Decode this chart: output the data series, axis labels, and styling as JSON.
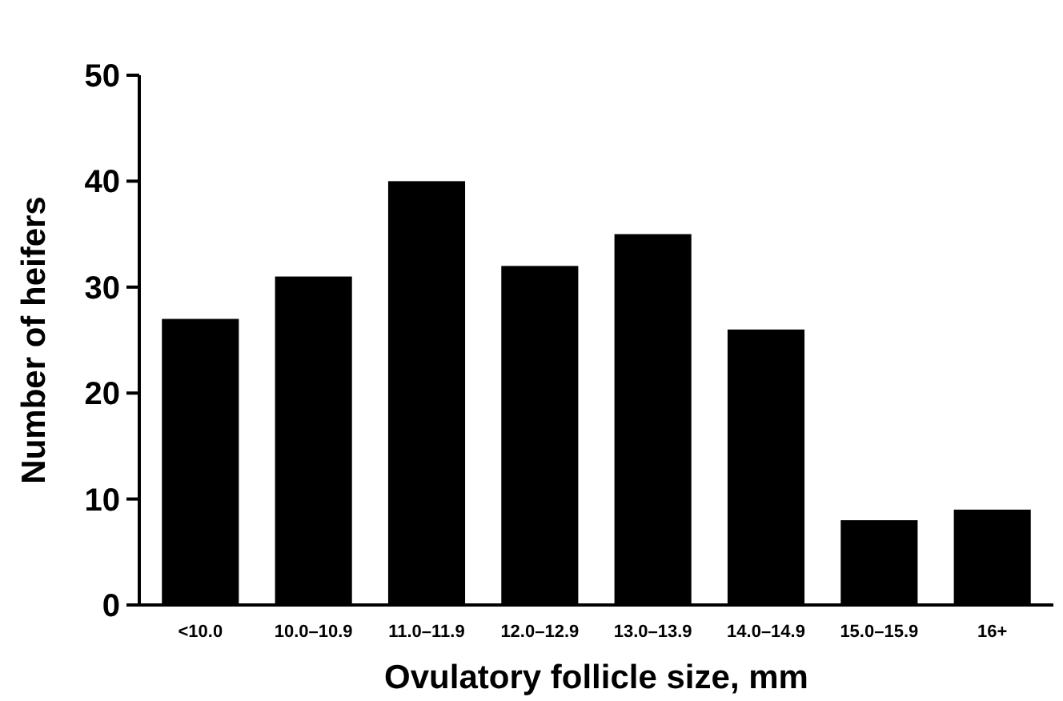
{
  "chart_data": {
    "type": "bar",
    "xlabel": "Ovulatory follicle size, mm",
    "ylabel": "Number of heifers",
    "categories": [
      "<10.0",
      "10.0–10.9",
      "11.0–11.9",
      "12.0–12.9",
      "13.0–13.9",
      "14.0–14.9",
      "15.0–15.9",
      "16+"
    ],
    "values": [
      27,
      31,
      40,
      32,
      35,
      26,
      8,
      9
    ],
    "color": "#000000",
    "ylim": [
      0,
      50
    ],
    "yticks": [
      0,
      10,
      20,
      30,
      40,
      50
    ],
    "grid": false
  }
}
